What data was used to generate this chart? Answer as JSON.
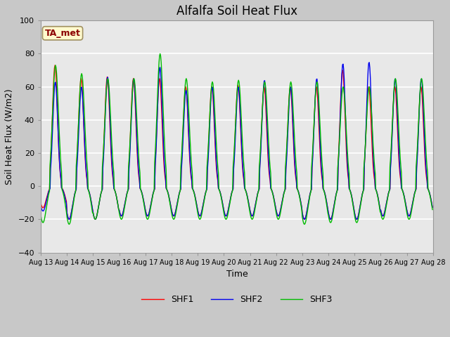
{
  "title": "Alfalfa Soil Heat Flux",
  "ylabel": "Soil Heat Flux (W/m2)",
  "xlabel": "Time",
  "ylim": [
    -40,
    100
  ],
  "yticks": [
    -40,
    -20,
    0,
    20,
    40,
    60,
    80,
    100
  ],
  "n_days": 15,
  "xtick_labels": [
    "Aug 13",
    "Aug 14",
    "Aug 15",
    "Aug 16",
    "Aug 17",
    "Aug 18",
    "Aug 19",
    "Aug 20",
    "Aug 21",
    "Aug 22",
    "Aug 23",
    "Aug 24",
    "Aug 25",
    "Aug 26",
    "Aug 27",
    "Aug 28"
  ],
  "annotation_text": "TA_met",
  "annotation_color": "#8B0000",
  "annotation_bg": "#FFFACD",
  "annotation_border": "#A09060",
  "fig_bg": "#C8C8C8",
  "plot_bg": "#E8E8E8",
  "grid_color": "#FFFFFF",
  "shf1_color": "#FF0000",
  "shf2_color": "#0000EE",
  "shf3_color": "#00BB00",
  "shf1_peaks": [
    73,
    65,
    66,
    65,
    65,
    60,
    60,
    61,
    60,
    60,
    60,
    70,
    60,
    60,
    60
  ],
  "shf2_peaks": [
    63,
    60,
    66,
    65,
    72,
    58,
    60,
    60,
    64,
    60,
    65,
    74,
    75,
    65,
    65
  ],
  "shf3_peaks": [
    73,
    68,
    65,
    65,
    80,
    65,
    63,
    64,
    63,
    63,
    63,
    60,
    60,
    65,
    65
  ],
  "shf1_troughs": [
    -13,
    -20,
    -20,
    -18,
    -18,
    -18,
    -18,
    -18,
    -18,
    -18,
    -20,
    -20,
    -20,
    -18,
    -18
  ],
  "shf2_troughs": [
    -15,
    -20,
    -20,
    -18,
    -18,
    -18,
    -18,
    -18,
    -18,
    -18,
    -20,
    -20,
    -20,
    -18,
    -18
  ],
  "shf3_troughs": [
    -22,
    -23,
    -20,
    -20,
    -20,
    -20,
    -20,
    -20,
    -20,
    -20,
    -23,
    -22,
    -22,
    -20,
    -20
  ],
  "title_fontsize": 12,
  "axis_label_fontsize": 9,
  "tick_fontsize": 8,
  "legend_fontsize": 9
}
